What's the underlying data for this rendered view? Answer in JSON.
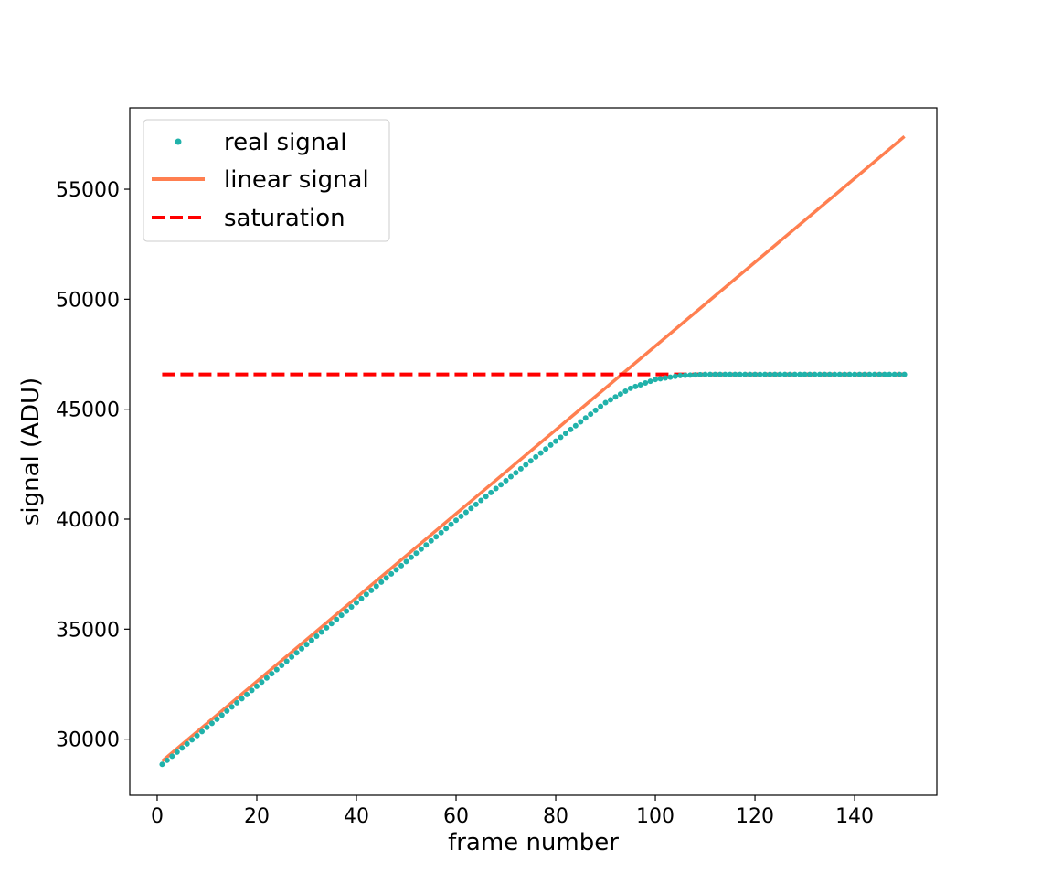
{
  "chart_data": {
    "type": "scatter",
    "xlabel": "frame number",
    "ylabel": "signal (ADU)",
    "xlim": [
      -5.5,
      156.5
    ],
    "ylim": [
      27450,
      58700
    ],
    "xticks": [
      0,
      20,
      40,
      60,
      80,
      100,
      120,
      140
    ],
    "yticks": [
      30000,
      35000,
      40000,
      45000,
      50000,
      55000
    ],
    "grid": false,
    "legend_position": "top-left",
    "colors": {
      "real": "#20b2aa",
      "linear": "#ff7f50",
      "saturation": "#ff0000"
    },
    "series": [
      {
        "name": "real signal",
        "kind": "points",
        "x_start": 1,
        "x_end": 150,
        "knots": [
          [
            1,
            28850
          ],
          [
            20,
            32400
          ],
          [
            40,
            36200
          ],
          [
            60,
            39950
          ],
          [
            80,
            43550
          ],
          [
            90,
            45300
          ],
          [
            95,
            45950
          ],
          [
            100,
            46350
          ],
          [
            105,
            46530
          ],
          [
            110,
            46580
          ],
          [
            150,
            46580
          ]
        ]
      },
      {
        "name": "linear signal",
        "kind": "line",
        "x": [
          1,
          150
        ],
        "y": [
          29000,
          57400
        ]
      },
      {
        "name": "saturation",
        "kind": "dashed-line",
        "x": [
          1,
          150
        ],
        "y": [
          46580,
          46580
        ]
      }
    ]
  }
}
